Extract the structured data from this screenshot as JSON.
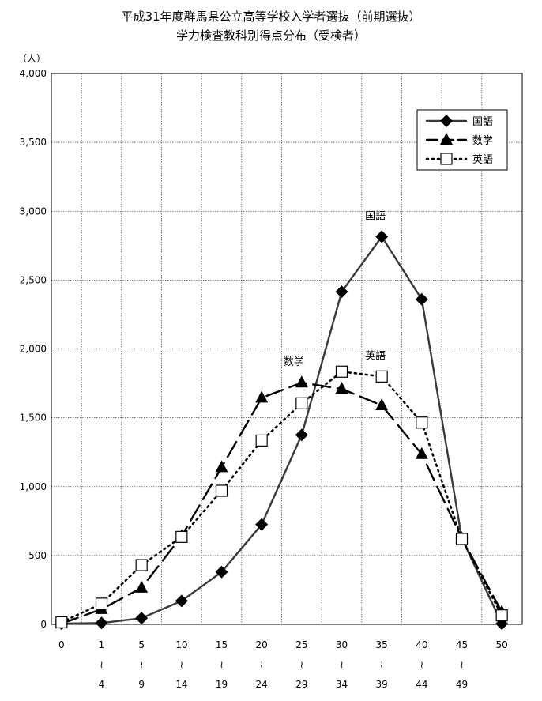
{
  "chart_data": {
    "type": "line",
    "title": "平成31年度群馬県公立高等学校入学者選抜（前期選抜）",
    "subtitle": "学力検査教科別得点分布（受検者）",
    "ylabel": "（人）",
    "ylim": [
      0,
      4000
    ],
    "yticks": [
      "0",
      "500",
      "1,000",
      "1,500",
      "2,000",
      "2,500",
      "3,000",
      "3,500",
      "4,000"
    ],
    "categories": [
      {
        "top": "0",
        "mid": "",
        "bottom": ""
      },
      {
        "top": "1",
        "mid": "≀",
        "bottom": "4"
      },
      {
        "top": "5",
        "mid": "≀",
        "bottom": "9"
      },
      {
        "top": "10",
        "mid": "≀",
        "bottom": "14"
      },
      {
        "top": "15",
        "mid": "≀",
        "bottom": "19"
      },
      {
        "top": "20",
        "mid": "≀",
        "bottom": "24"
      },
      {
        "top": "25",
        "mid": "≀",
        "bottom": "29"
      },
      {
        "top": "30",
        "mid": "≀",
        "bottom": "34"
      },
      {
        "top": "35",
        "mid": "≀",
        "bottom": "39"
      },
      {
        "top": "40",
        "mid": "≀",
        "bottom": "44"
      },
      {
        "top": "45",
        "mid": "≀",
        "bottom": "49"
      },
      {
        "top": "50",
        "mid": "",
        "bottom": ""
      }
    ],
    "series": [
      {
        "name": "国語",
        "marker": "diamond",
        "dash": "solid",
        "color": "#3a3a3a",
        "values": [
          5,
          10,
          45,
          170,
          380,
          725,
          1375,
          2415,
          2815,
          2360,
          625,
          5
        ]
      },
      {
        "name": "数学",
        "marker": "triangle",
        "dash": "long-dash",
        "color": "#000000",
        "values": [
          5,
          110,
          265,
          640,
          1140,
          1645,
          1755,
          1710,
          1590,
          1235,
          625,
          90
        ]
      },
      {
        "name": "英語",
        "marker": "square",
        "dash": "dotted",
        "color": "#000000",
        "values": [
          15,
          150,
          430,
          635,
          970,
          1335,
          1605,
          1835,
          1800,
          1465,
          620,
          65
        ]
      }
    ],
    "annotations": [
      "国語",
      "数学",
      "英語"
    ],
    "legend": "top-right",
    "grid": true
  }
}
